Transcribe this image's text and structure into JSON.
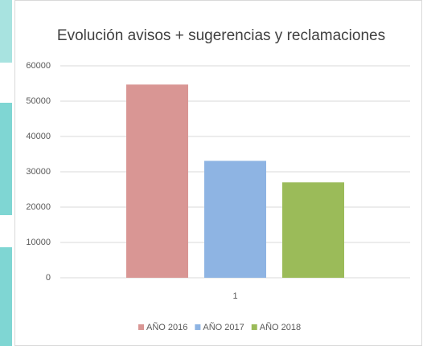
{
  "chart_data": {
    "type": "bar",
    "title": "Evolución avisos + sugerencias y reclamaciones",
    "categories": [
      "1"
    ],
    "series": [
      {
        "name": "AÑO 2016",
        "color": "#d99694",
        "values": [
          54700
        ]
      },
      {
        "name": "AÑO 2017",
        "color": "#8eb4e3",
        "values": [
          33100
        ]
      },
      {
        "name": "AÑO 2018",
        "color": "#9bbb59",
        "values": [
          27000
        ]
      }
    ],
    "ylim": [
      0,
      60000
    ],
    "yticks": [
      0,
      10000,
      20000,
      30000,
      40000,
      50000,
      60000
    ],
    "grid": true,
    "legend": "bottom"
  }
}
